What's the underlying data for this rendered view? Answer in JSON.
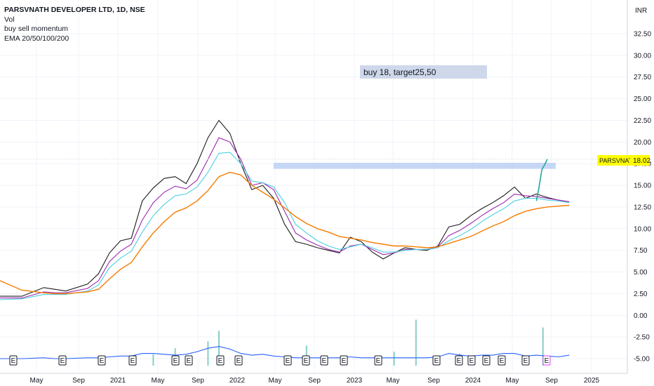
{
  "legend": {
    "title": "PARSVNATH DEVELOPER LTD, 1D, NSE",
    "items": [
      "Vol",
      "buy sell momentum",
      "EMA 20/50/100/200"
    ]
  },
  "currency": "INR",
  "price_label": {
    "symbol": "PARSVNATH",
    "value": "18.02",
    "bg": "#ffff00"
  },
  "annotation": {
    "text": "buy 18, target25,50"
  },
  "earnings_marker": "E",
  "colors": {
    "ema20": "#1b1b1b",
    "ema50": "#9c27b0",
    "ema100": "#4dd0e1",
    "ema200": "#f57c00",
    "momentum": "#2962ff",
    "up": "#26a69a",
    "down": "#ef5350",
    "zone": "#bcd0f5",
    "annotation_bg": "#cfd8ea"
  },
  "chart_data": {
    "type": "line",
    "title": "PARSVNATH DEVELOPER LTD, 1D, NSE",
    "y_ticks": [
      "32.50",
      "30.00",
      "27.50",
      "25.00",
      "22.50",
      "20.00",
      "17.50",
      "15.00",
      "12.50",
      "10.00",
      "7.50",
      "5.00",
      "2.50",
      "0.00",
      "-2.50",
      "-5.00"
    ],
    "x_ticks": [
      "May",
      "Sep",
      "2021",
      "May",
      "Sep",
      "2022",
      "May",
      "Sep",
      "2023",
      "May",
      "Sep",
      "2024",
      "May",
      "Sep",
      "2025"
    ],
    "ylim": [
      -5.5,
      33
    ],
    "x": [
      0,
      2,
      4,
      5,
      6,
      8,
      9,
      10,
      11,
      12,
      13,
      14,
      15,
      16,
      17,
      18,
      19,
      20,
      21,
      22,
      23,
      24,
      25,
      26,
      27,
      28,
      29,
      30,
      31,
      32,
      33,
      34,
      35,
      36,
      37,
      38,
      39,
      40,
      41,
      42,
      43,
      44,
      45,
      46,
      47,
      48,
      49,
      50,
      51,
      52,
      53,
      54,
      55,
      56
    ],
    "series": [
      {
        "name": "EMA 20",
        "values": [
          2.2,
          2.2,
          3.2,
          3.0,
          2.8,
          3.6,
          4.8,
          7.2,
          8.6,
          8.9,
          13.2,
          14.7,
          15.8,
          16.0,
          15.2,
          17.5,
          20.5,
          22.5,
          21.0,
          17.5,
          14.5,
          15.0,
          13.5,
          10.5,
          8.5,
          8.2,
          7.8,
          7.5,
          7.2,
          9.0,
          8.5,
          7.3,
          6.5,
          7.2,
          7.8,
          7.6,
          7.5,
          8.0,
          10.2,
          10.5,
          11.5,
          12.3,
          13.0,
          13.8,
          14.8,
          13.5,
          14.0,
          13.6,
          13.3,
          13.1,
          null,
          null,
          null,
          null
        ]
      },
      {
        "name": "EMA 50",
        "values": [
          2.0,
          2.0,
          2.7,
          2.6,
          2.6,
          3.1,
          4.0,
          6.2,
          7.4,
          8.2,
          11.0,
          13.0,
          14.2,
          14.9,
          14.6,
          15.6,
          18.0,
          20.5,
          20.0,
          18.0,
          15.0,
          15.3,
          14.5,
          12.0,
          9.5,
          8.7,
          8.1,
          7.6,
          7.3,
          8.0,
          8.2,
          7.6,
          7.0,
          7.2,
          7.6,
          7.6,
          7.6,
          7.9,
          9.2,
          9.8,
          10.6,
          11.5,
          12.3,
          13.0,
          14.0,
          13.8,
          13.7,
          13.5,
          13.3,
          13.1,
          null,
          null,
          null,
          null
        ]
      },
      {
        "name": "EMA 100",
        "values": [
          1.8,
          1.9,
          2.4,
          2.4,
          2.4,
          2.8,
          3.5,
          5.5,
          6.6,
          7.4,
          9.6,
          11.5,
          12.8,
          13.8,
          14.0,
          14.8,
          16.5,
          18.7,
          18.8,
          17.5,
          15.5,
          15.3,
          14.8,
          13.0,
          10.5,
          9.5,
          8.6,
          8.0,
          7.6,
          7.9,
          8.2,
          7.8,
          7.3,
          7.3,
          7.5,
          7.6,
          7.6,
          7.8,
          8.6,
          9.2,
          9.9,
          10.8,
          11.6,
          12.3,
          13.2,
          13.5,
          13.5,
          13.3,
          13.2,
          13.0,
          null,
          null,
          null,
          null
        ]
      },
      {
        "name": "EMA 200",
        "values": [
          4.0,
          2.9,
          2.6,
          2.5,
          2.5,
          2.7,
          3.0,
          4.2,
          5.3,
          6.1,
          7.9,
          9.5,
          10.8,
          11.9,
          12.4,
          13.2,
          14.4,
          16.0,
          16.5,
          16.2,
          15.0,
          14.2,
          13.4,
          12.4,
          11.4,
          10.6,
          10.0,
          9.6,
          9.1,
          8.9,
          8.7,
          8.4,
          8.2,
          8.0,
          8.0,
          7.9,
          7.8,
          7.9,
          8.3,
          8.7,
          9.1,
          9.7,
          10.3,
          10.8,
          11.5,
          12.0,
          12.3,
          12.5,
          12.6,
          12.7,
          null,
          null,
          null,
          null
        ]
      },
      {
        "name": "buy sell momentum",
        "values": [
          -5.0,
          -5.0,
          -4.9,
          -5.0,
          -5.0,
          -4.9,
          -4.9,
          -4.8,
          -4.7,
          -4.7,
          -4.4,
          -4.4,
          -4.5,
          -4.6,
          -4.5,
          -4.2,
          -3.8,
          -3.6,
          -3.9,
          -4.4,
          -4.6,
          -4.5,
          -4.7,
          -4.8,
          -4.9,
          -4.9,
          -4.9,
          -4.9,
          -4.9,
          -4.8,
          -4.9,
          -4.9,
          -4.9,
          -4.9,
          -4.9,
          -4.9,
          -4.9,
          -4.8,
          -4.4,
          -4.6,
          -4.7,
          -4.6,
          -4.6,
          -4.4,
          -4.4,
          -4.7,
          -4.6,
          -4.7,
          -4.8,
          -4.6,
          null,
          null,
          null,
          null
        ]
      }
    ],
    "price_path": {
      "x": [
        49,
        49.2,
        49.5,
        49.8,
        50.0
      ],
      "values": [
        13.2,
        14.5,
        16.8,
        17.5,
        18.02
      ]
    },
    "volume_spikes": [
      {
        "x": 14,
        "values": 0.5
      },
      {
        "x": 16,
        "values": 1.2
      },
      {
        "x": 19,
        "values": 2.0
      },
      {
        "x": 20,
        "values": 3.2
      },
      {
        "x": 28,
        "values": 1.5
      },
      {
        "x": 36,
        "values": 0.8
      },
      {
        "x": 38,
        "values": 4.5
      },
      {
        "x": 42,
        "values": 0.6
      },
      {
        "x": 49.6,
        "values": 3.6
      }
    ],
    "zones": [
      {
        "y_from": 16.9,
        "y_to": 17.6
      }
    ],
    "last_value": 18.02,
    "grid": true,
    "legend_position": "top-left"
  }
}
